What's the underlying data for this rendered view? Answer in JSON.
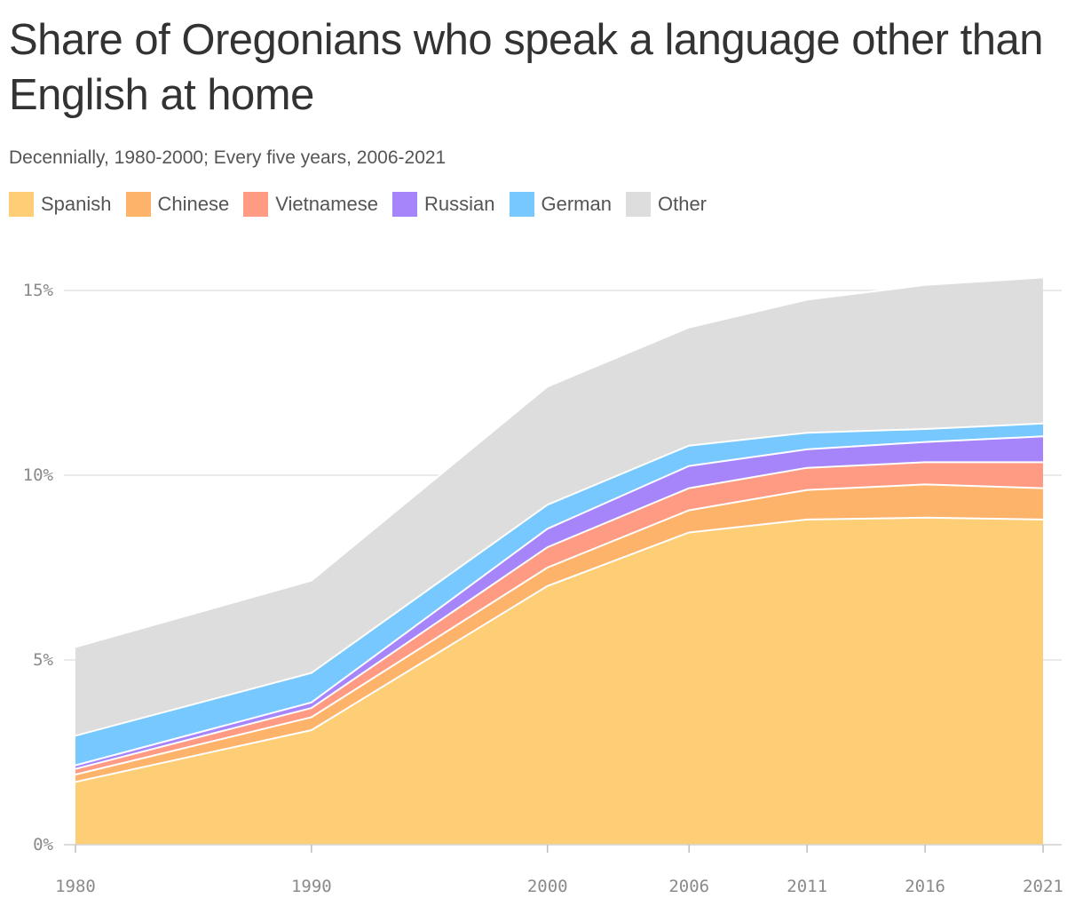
{
  "chart_data": {
    "type": "area",
    "stacked": true,
    "title": "Share of Oregonians who speak a language other than English at home",
    "subtitle": "Decennially, 1980-2000; Every five years, 2006-2021",
    "x": [
      1980,
      1990,
      2000,
      2006,
      2011,
      2016,
      2021
    ],
    "x_tick_labels": [
      "1980",
      "1990",
      "2000",
      "2006",
      "2011",
      "2016",
      "2021"
    ],
    "ylim": [
      0,
      15
    ],
    "y_ticks": [
      0,
      5,
      10,
      15
    ],
    "y_tick_labels": [
      "0%",
      "5%",
      "10%",
      "15%"
    ],
    "grid": true,
    "legend_position": "top-left",
    "series": [
      {
        "name": "Spanish",
        "color": "#fdce75",
        "values": [
          1.7,
          3.1,
          7.0,
          8.45,
          8.8,
          8.85,
          8.8
        ]
      },
      {
        "name": "Chinese",
        "color": "#feb36b",
        "values": [
          0.2,
          0.35,
          0.5,
          0.6,
          0.8,
          0.9,
          0.85
        ]
      },
      {
        "name": "Vietnamese",
        "color": "#ff9b83",
        "values": [
          0.15,
          0.25,
          0.55,
          0.6,
          0.6,
          0.6,
          0.7
        ]
      },
      {
        "name": "Russian",
        "color": "#a685fb",
        "values": [
          0.1,
          0.15,
          0.5,
          0.6,
          0.5,
          0.55,
          0.7
        ]
      },
      {
        "name": "German",
        "color": "#77c8ff",
        "values": [
          0.8,
          0.8,
          0.65,
          0.55,
          0.45,
          0.35,
          0.35
        ]
      },
      {
        "name": "Other",
        "color": "#dddddd",
        "values": [
          2.4,
          2.5,
          3.2,
          3.2,
          3.6,
          3.9,
          3.95
        ]
      }
    ]
  }
}
